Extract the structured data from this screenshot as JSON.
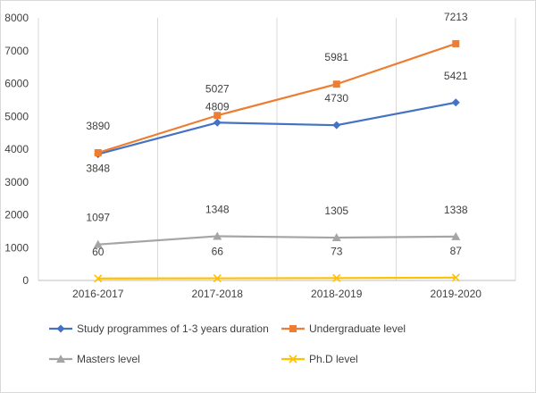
{
  "chart_data": {
    "type": "line",
    "categories": [
      "2016-2017",
      "2017-2018",
      "2018-2019",
      "2019-2020"
    ],
    "ylim": [
      0,
      8000
    ],
    "yticks": [
      0,
      1000,
      2000,
      3000,
      4000,
      5000,
      6000,
      7000,
      8000
    ],
    "grid": "vertical",
    "legend_position": "bottom",
    "series": [
      {
        "name": "Study programmes of 1-3 years duration",
        "values": [
          3848,
          4809,
          4730,
          5421
        ],
        "color": "#4472C4",
        "marker": "diamond"
      },
      {
        "name": "Undergraduate level",
        "values": [
          3890,
          5027,
          5981,
          7213
        ],
        "color": "#ED7D31",
        "marker": "square"
      },
      {
        "name": "Masters level",
        "values": [
          1097,
          1348,
          1305,
          1338
        ],
        "color": "#A5A5A5",
        "marker": "triangle"
      },
      {
        "name": "Ph.D level",
        "values": [
          60,
          66,
          73,
          87
        ],
        "color": "#FFC000",
        "marker": "x"
      }
    ]
  }
}
